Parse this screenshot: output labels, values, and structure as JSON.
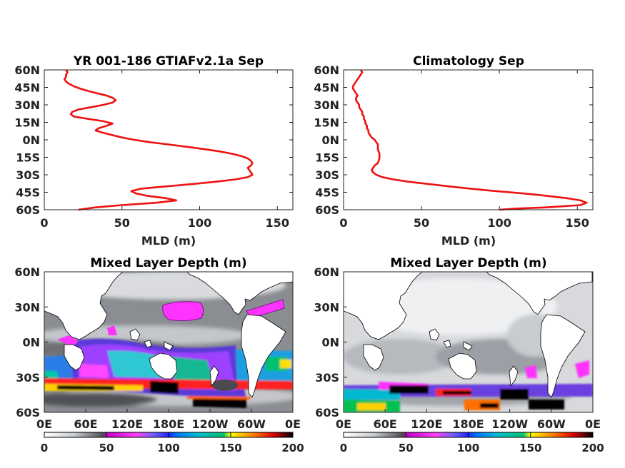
{
  "colors": {
    "line": "#ee1111",
    "land": "#ffffff"
  },
  "colorbar": {
    "ticks": [
      "0",
      "50",
      "100",
      "150",
      "200"
    ]
  },
  "chart_data": [
    {
      "type": "line",
      "title": "YR 001-186 GTIAFv2.1a Sep",
      "xlabel": "MLD (m)",
      "ylabel": "",
      "xlim": [
        0,
        160
      ],
      "ylim": [
        -60,
        60
      ],
      "xticks": [
        "0",
        "50",
        "100",
        "150"
      ],
      "yticks": [
        "60N",
        "45N",
        "30N",
        "15N",
        "0N",
        "15S",
        "30S",
        "45S",
        "60S"
      ],
      "series": [
        {
          "x": [
            14,
            15,
            14,
            14,
            13,
            14,
            16,
            19,
            23,
            28,
            34,
            40,
            44,
            46,
            44,
            38,
            30,
            22,
            18,
            17,
            19,
            28,
            38,
            44,
            40,
            35,
            33,
            38,
            44,
            50,
            58,
            68,
            80,
            92,
            103,
            113,
            121,
            127,
            131,
            133,
            134,
            133,
            131,
            132,
            133,
            134,
            131,
            123,
            110,
            95,
            78,
            62,
            56,
            59,
            66,
            78,
            85,
            72,
            50,
            33,
            22
          ],
          "y": [
            60,
            58,
            56,
            54,
            52,
            50,
            48,
            46,
            44,
            42,
            40,
            38,
            36,
            34,
            32,
            30,
            28,
            26,
            24,
            22,
            20,
            18,
            16,
            14,
            12,
            10,
            8,
            6,
            4,
            2,
            0,
            -2,
            -4,
            -6,
            -8,
            -10,
            -12,
            -14,
            -16,
            -18,
            -20,
            -22,
            -24,
            -26,
            -28,
            -30,
            -32,
            -34,
            -36,
            -38,
            -40,
            -42,
            -44,
            -46,
            -48,
            -50,
            -52,
            -54,
            -56,
            -58,
            -60
          ]
        }
      ]
    },
    {
      "type": "line",
      "title": "Climatology Sep",
      "xlabel": "MLD (m)",
      "ylabel": "",
      "xlim": [
        0,
        160
      ],
      "ylim": [
        -60,
        60
      ],
      "xticks": [
        "0",
        "50",
        "100",
        "150"
      ],
      "yticks": [
        "60N",
        "45N",
        "30N",
        "15N",
        "0N",
        "15S",
        "30S",
        "45S",
        "60S"
      ],
      "series": [
        {
          "x": [
            11,
            12,
            11,
            10,
            9,
            8,
            7,
            6,
            6,
            7,
            8,
            9,
            8,
            8,
            9,
            10,
            10,
            11,
            12,
            12,
            13,
            13,
            14,
            14,
            15,
            15,
            16,
            16,
            17,
            18,
            20,
            22,
            22,
            23,
            23,
            22,
            20,
            19,
            18,
            19,
            21,
            25,
            32,
            42,
            55,
            68,
            82,
            98,
            115,
            130,
            143,
            152,
            156,
            152,
            130,
            110,
            100
          ],
          "y": [
            60,
            58,
            56,
            54,
            52,
            50,
            48,
            46,
            44,
            42,
            40,
            38,
            36,
            34,
            32,
            30,
            28,
            26,
            24,
            22,
            20,
            18,
            16,
            14,
            12,
            10,
            8,
            6,
            4,
            2,
            0,
            -4,
            -8,
            -12,
            -16,
            -20,
            -22,
            -24,
            -26,
            -28,
            -30,
            -32,
            -34,
            -36,
            -38,
            -40,
            -42,
            -44,
            -46,
            -48,
            -50,
            -52,
            -54,
            -56,
            -58,
            -59,
            -60
          ]
        }
      ]
    },
    {
      "type": "heatmap",
      "title": "Mixed Layer Depth (m)",
      "xticks": [
        "0E",
        "60E",
        "120E",
        "180E",
        "120W",
        "60W",
        "0E"
      ],
      "yticks": [
        "60N",
        "30N",
        "0N",
        "30S",
        "60S"
      ],
      "ylim": [
        -60,
        60
      ],
      "xlim": [
        0,
        360
      ],
      "clim": [
        0,
        200
      ]
    },
    {
      "type": "heatmap",
      "title": "Mixed Layer Depth (m)",
      "xticks": [
        "0E",
        "60E",
        "120E",
        "180E",
        "120W",
        "60W",
        "0E"
      ],
      "yticks": [
        "60N",
        "30N",
        "0N",
        "30S",
        "60S"
      ],
      "ylim": [
        -60,
        60
      ],
      "xlim": [
        0,
        360
      ],
      "clim": [
        0,
        200
      ]
    }
  ]
}
